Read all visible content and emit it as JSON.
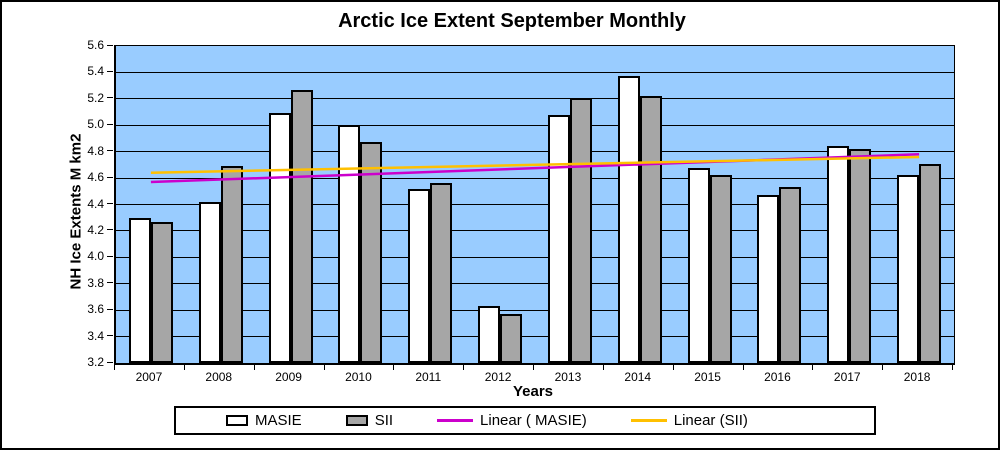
{
  "figure": {
    "title": "Arctic Ice Extent September Monthly",
    "colors": {
      "plot_background": "#99CCFF",
      "masie_bar_fill": "#FFFFFF",
      "sii_bar_fill": "#A6A6A6",
      "masie_trend_line": "#CC00CC",
      "sii_trend_line": "#FFC000",
      "axis_and_grid": "#000000"
    }
  },
  "chart_data": {
    "type": "bar",
    "title": "Arctic Ice Extent September Monthly",
    "xlabel": "Years",
    "ylabel": "NH Ice Extents M km2",
    "ylim": [
      3.2,
      5.6
    ],
    "ytick_step": 0.2,
    "ytick_labels": [
      "5.6",
      "5.4",
      "5.2",
      "5.0",
      "4.8",
      "4.6",
      "4.4",
      "4.2",
      "4.0",
      "3.8",
      "3.6",
      "3.4",
      "3.2"
    ],
    "grid": true,
    "categories": [
      "2007",
      "2008",
      "2009",
      "2010",
      "2011",
      "2012",
      "2013",
      "2014",
      "2015",
      "2016",
      "2017",
      "2018"
    ],
    "series": [
      {
        "name": "MASIE",
        "kind": "bar",
        "color": "#FFFFFF",
        "values": [
          4.3,
          4.42,
          5.09,
          5.0,
          4.52,
          3.63,
          5.08,
          5.37,
          4.68,
          4.47,
          4.84,
          4.62
        ]
      },
      {
        "name": "SII",
        "kind": "bar",
        "color": "#A6A6A6",
        "values": [
          4.27,
          4.69,
          5.27,
          4.87,
          4.56,
          3.57,
          5.21,
          5.22,
          4.62,
          4.53,
          4.82,
          4.71
        ]
      }
    ],
    "trendlines": [
      {
        "name": "Linear ( MASIE)",
        "color": "#CC00CC",
        "start_value": 4.57,
        "end_value": 4.78,
        "start_category": "2007",
        "end_category": "2018"
      },
      {
        "name": "Linear (SII)",
        "color": "#FFC000",
        "start_value": 4.64,
        "end_value": 4.76,
        "start_category": "2007",
        "end_category": "2018"
      }
    ],
    "legend": {
      "position": "bottom",
      "entries": [
        {
          "label": "MASIE",
          "swatch": "box",
          "color": "#FFFFFF"
        },
        {
          "label": "SII",
          "swatch": "box",
          "color": "#A6A6A6"
        },
        {
          "label": "Linear ( MASIE)",
          "swatch": "line",
          "color": "#CC00CC"
        },
        {
          "label": "Linear (SII)",
          "swatch": "line",
          "color": "#FFC000"
        }
      ]
    }
  }
}
